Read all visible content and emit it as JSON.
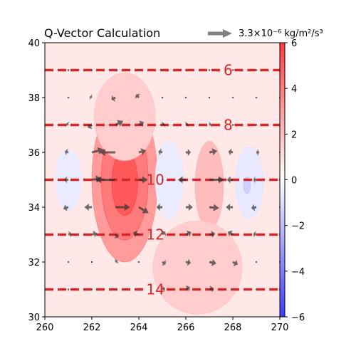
{
  "chart_data": {
    "type": "contour",
    "title": "Q-Vector Calculation",
    "xlim": [
      260,
      270
    ],
    "ylim": [
      30,
      40
    ],
    "x_ticks": [
      "260",
      "262",
      "264",
      "266",
      "268",
      "270"
    ],
    "y_ticks": [
      "30",
      "32",
      "34",
      "36",
      "38",
      "40"
    ],
    "colorbar": {
      "range": [
        -6,
        6
      ],
      "ticks": [
        "−6",
        "−4",
        "−2",
        "0",
        "2",
        "4",
        "6"
      ],
      "colormap": "bwr"
    },
    "quiver_key": "3.3×10⁻⁶ kg/m²/s³",
    "isolines": [
      {
        "value": "6",
        "y": 39
      },
      {
        "value": "8",
        "y": 37
      },
      {
        "value": "10",
        "y": 35
      },
      {
        "value": "12",
        "y": 33
      },
      {
        "value": "14",
        "y": 31
      }
    ],
    "isoline_color": "#d62728",
    "fill_blobs": [
      {
        "cx": 263.4,
        "cy": 35.0,
        "rx": 1.4,
        "ry": 3.0,
        "value": 3.0
      },
      {
        "cx": 263.4,
        "cy": 35.0,
        "rx": 1.0,
        "ry": 2.2,
        "value": 4.0
      },
      {
        "cx": 263.4,
        "cy": 34.9,
        "rx": 0.55,
        "ry": 1.2,
        "value": 5.0
      },
      {
        "cx": 263.4,
        "cy": 37.3,
        "rx": 1.3,
        "ry": 1.6,
        "value": 1.5
      },
      {
        "cx": 267.0,
        "cy": 34.8,
        "rx": 0.6,
        "ry": 1.6,
        "value": 2.0
      },
      {
        "cx": 266.5,
        "cy": 31.8,
        "rx": 1.9,
        "ry": 1.7,
        "value": 1.5
      },
      {
        "cx": 261.0,
        "cy": 35.0,
        "rx": 0.55,
        "ry": 1.1,
        "value": -0.6
      },
      {
        "cx": 265.3,
        "cy": 35.0,
        "rx": 0.6,
        "ry": 1.4,
        "value": -0.6
      },
      {
        "cx": 268.7,
        "cy": 34.9,
        "rx": 0.6,
        "ry": 1.3,
        "value": -0.7
      },
      {
        "cx": 268.6,
        "cy": 34.8,
        "rx": 0.15,
        "ry": 0.3,
        "value": -1.4
      }
    ],
    "vectors": {
      "x": [
        261,
        262,
        263,
        264,
        265,
        266,
        267,
        268,
        269,
        270
      ],
      "y": [
        31,
        32,
        33,
        34,
        35,
        36,
        37,
        38,
        39
      ],
      "scale_ref": 3.3,
      "rows": [
        [
          [
            0,
            0
          ],
          [
            0,
            0
          ],
          [
            0.2,
            0.1
          ],
          [
            0.3,
            0.1
          ],
          [
            0.5,
            0.3
          ],
          [
            0.8,
            0.5
          ],
          [
            0.8,
            0.3
          ],
          [
            0.3,
            0
          ],
          [
            0,
            0
          ],
          [
            0,
            0
          ]
        ],
        [
          [
            0,
            0
          ],
          [
            0.2,
            0
          ],
          [
            0.4,
            0.3
          ],
          [
            0.4,
            0
          ],
          [
            0.7,
            -0.4
          ],
          [
            1,
            -0.2
          ],
          [
            1.4,
            -0.3
          ],
          [
            1,
            -0.5
          ],
          [
            0.2,
            0
          ],
          [
            0,
            0
          ]
        ],
        [
          [
            0.6,
            0.2
          ],
          [
            1,
            0.3
          ],
          [
            0.6,
            -0.6
          ],
          [
            -1.2,
            0.4
          ],
          [
            0.6,
            0.6
          ],
          [
            1.1,
            0.5
          ],
          [
            1.2,
            0.2
          ],
          [
            -1,
            0.6
          ],
          [
            -0.6,
            0.2
          ],
          [
            0,
            0
          ]
        ],
        [
          [
            -1,
            -0.3
          ],
          [
            -1.5,
            0
          ],
          [
            3,
            0
          ],
          [
            2,
            -1.2
          ],
          [
            -1.2,
            0
          ],
          [
            1.4,
            0
          ],
          [
            2,
            -0.2
          ],
          [
            -1.4,
            0
          ],
          [
            -1,
            -0.2
          ],
          [
            0,
            0
          ]
        ],
        [
          [
            -0.8,
            0
          ],
          [
            2,
            0.3
          ],
          [
            -4,
            0
          ],
          [
            1.8,
            0
          ],
          [
            0,
            0
          ],
          [
            -1.6,
            0
          ],
          [
            3,
            0
          ],
          [
            -1.2,
            0
          ],
          [
            -0.6,
            0
          ],
          [
            0,
            0
          ]
        ],
        [
          [
            -0.7,
            0.2
          ],
          [
            2.4,
            0.6
          ],
          [
            -3.2,
            0
          ],
          [
            1.4,
            0.4
          ],
          [
            -0.8,
            0.2
          ],
          [
            1,
            0
          ],
          [
            1.6,
            0.3
          ],
          [
            -0.9,
            0.2
          ],
          [
            0.6,
            0
          ],
          [
            0,
            0
          ]
        ],
        [
          [
            -0.4,
            0.3
          ],
          [
            -0.8,
            -0.6
          ],
          [
            1.6,
            0.8
          ],
          [
            1,
            0.6
          ],
          [
            0.4,
            0.3
          ],
          [
            0.4,
            0.3
          ],
          [
            0.4,
            0.2
          ],
          [
            0.3,
            0
          ],
          [
            0.2,
            0
          ],
          [
            0,
            0
          ]
        ],
        [
          [
            -0.2,
            0
          ],
          [
            -0.4,
            0.2
          ],
          [
            -0.8,
            -0.4
          ],
          [
            -0.6,
            0.6
          ],
          [
            0.3,
            0.3
          ],
          [
            0.3,
            0.3
          ],
          [
            0.2,
            0.2
          ],
          [
            0,
            0
          ],
          [
            0,
            0
          ],
          [
            0,
            0
          ]
        ],
        [
          [
            0,
            0
          ],
          [
            0,
            0
          ],
          [
            0.2,
            0.2
          ],
          [
            0.3,
            0
          ],
          [
            0.2,
            0
          ],
          [
            0,
            0
          ],
          [
            0,
            0
          ],
          [
            0,
            0
          ],
          [
            0,
            0
          ],
          [
            0,
            0
          ]
        ]
      ]
    }
  }
}
